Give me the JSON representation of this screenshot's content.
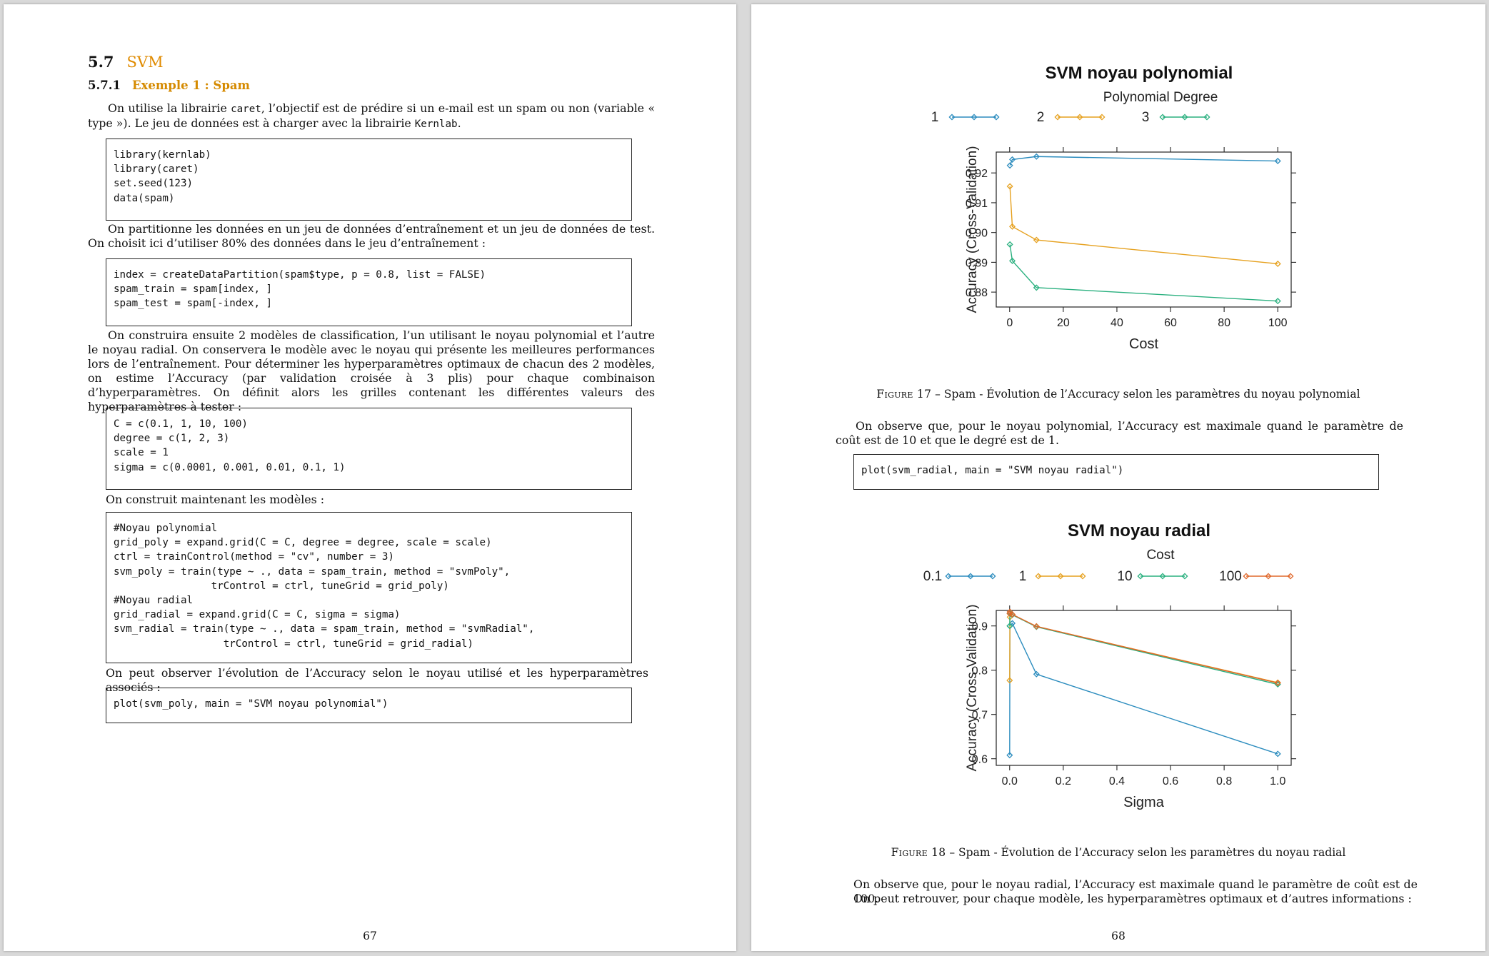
{
  "left_page": {
    "section": {
      "number": "5.7",
      "title": "SVM"
    },
    "subsection": {
      "number": "5.7.1",
      "title": "Exemple 1 : Spam"
    },
    "p1": {
      "a": "On utilise la librairie ",
      "b": "caret",
      "c": ", l’objectif est de prédire si un e-mail est un spam ou non (variable « type »). Le jeu de données est à charger avec la librairie ",
      "d": "Kernlab",
      "e": "."
    },
    "code1": [
      "library(kernlab)",
      "library(caret)",
      "set.seed(123)",
      "data(spam)"
    ],
    "p2": "On partitionne les données en un jeu de données d’entraînement et un jeu de données de test. On choisit ici d’utiliser 80% des données dans le jeu d’entraînement :",
    "code2": [
      "index = createDataPartition(spam$type, p = 0.8, list = FALSE)",
      "spam_train = spam[index, ]",
      "spam_test = spam[-index, ]"
    ],
    "p3": "On construira ensuite 2 modèles de classification, l’un utilisant le noyau polynomial et l’autre le noyau radial. On conservera le modèle avec le noyau qui présente les meilleures performances lors de l’entraînement. Pour déterminer les hyperparamètres optimaux de chacun des 2 modèles, on estime l’Accuracy (par validation croisée à 3 plis) pour chaque combinaison d’hyperparamètres. On définit alors les grilles contenant les différentes valeurs des hyperparamètres à tester :",
    "code3": [
      "C = c(0.1, 1, 10, 100)",
      "degree = c(1, 2, 3)",
      "scale = 1",
      "sigma = c(0.0001, 0.001, 0.01, 0.1, 1)"
    ],
    "p4": "On construit maintenant les modèles :",
    "code4": [
      "#Noyau polynomial",
      "grid_poly = expand.grid(C = C, degree = degree, scale = scale)",
      "ctrl = trainControl(method = \"cv\", number = 3)",
      "svm_poly = train(type ~ ., data = spam_train, method = \"svmPoly\",",
      "                trControl = ctrl, tuneGrid = grid_poly)",
      "#Noyau radial",
      "grid_radial = expand.grid(C = C, sigma = sigma)",
      "svm_radial = train(type ~ ., data = spam_train, method = \"svmRadial\",",
      "                  trControl = ctrl, tuneGrid = grid_radial)"
    ],
    "p5": "On peut observer l’évolution de l’Accuracy selon le noyau utilisé et les hyperparamètres associés :",
    "code5": [
      "plot(svm_poly, main = \"SVM noyau polynomial\")"
    ],
    "page_number": "67"
  },
  "right_page": {
    "figure17_caption": {
      "label": "Figure 17",
      "text": " – Spam - Évolution de l’Accuracy selon les paramètres du noyau polynomial"
    },
    "p6": "On observe que, pour le noyau polynomial, l’Accuracy est maximale quand le paramètre de coût est de 10 et que le degré est de 1.",
    "code6": [
      "plot(svm_radial, main = \"SVM noyau radial\")"
    ],
    "figure18_caption": {
      "label": "Figure 18",
      "text": " – Spam - Évolution de l’Accuracy selon les paramètres du noyau radial"
    },
    "p7": "On observe que, pour le noyau radial, l’Accuracy est maximale quand le paramètre de coût est de 100.",
    "p8": "On peut retrouver, pour chaque modèle, les hyperparamètres optimaux et d’autres informations :",
    "page_number": "68"
  },
  "chart_data": [
    {
      "type": "line",
      "title": "SVM noyau polynomial",
      "legend_title": "Polynomial Degree",
      "legend_position": "top",
      "xlabel": "Cost",
      "ylabel": "Accuracy (Cross-Validation)",
      "xlim": [
        -5,
        105
      ],
      "ylim": [
        0.875,
        0.927
      ],
      "xticks": [
        0,
        20,
        40,
        60,
        80,
        100
      ],
      "yticks": [
        0.88,
        0.89,
        0.9,
        0.91,
        0.92
      ],
      "ytick_labels": [
        "0.88",
        "0.89",
        "0.90",
        "0.91",
        "0.92"
      ],
      "grid": false,
      "x": [
        0.1,
        1,
        10,
        100
      ],
      "series": [
        {
          "name": "1",
          "color": "#2b8cbe",
          "values": [
            0.9225,
            0.9245,
            0.9255,
            0.924
          ]
        },
        {
          "name": "2",
          "color": "#e6a11f",
          "values": [
            0.9155,
            0.902,
            0.8975,
            0.8895
          ]
        },
        {
          "name": "3",
          "color": "#2ab07f",
          "values": [
            0.896,
            0.8905,
            0.8815,
            0.877
          ]
        }
      ]
    },
    {
      "type": "line",
      "title": "SVM noyau radial",
      "legend_title": "Cost",
      "legend_position": "top",
      "xlabel": "Sigma",
      "ylabel": "Accuracy (Cross-Validation)",
      "xlim": [
        -0.05,
        1.05
      ],
      "ylim": [
        0.585,
        0.935
      ],
      "xticks": [
        0.0,
        0.2,
        0.4,
        0.6,
        0.8,
        1.0
      ],
      "xtick_labels": [
        "0.0",
        "0.2",
        "0.4",
        "0.6",
        "0.8",
        "1.0"
      ],
      "yticks": [
        0.6,
        0.7,
        0.8,
        0.9
      ],
      "ytick_labels": [
        "0.6",
        "0.7",
        "0.8",
        "0.9"
      ],
      "grid": false,
      "x": [
        0.0001,
        0.001,
        0.01,
        0.1,
        1
      ],
      "series": [
        {
          "name": "0.1",
          "color": "#2b8cbe",
          "values": [
            0.608,
            0.9,
            0.906,
            0.791,
            0.611
          ]
        },
        {
          "name": "1",
          "color": "#e6a11f",
          "values": [
            0.777,
            0.92,
            0.926,
            0.899,
            0.772
          ]
        },
        {
          "name": "10",
          "color": "#2ab07f",
          "values": [
            0.9,
            0.929,
            0.925,
            0.898,
            0.768
          ]
        },
        {
          "name": "100",
          "color": "#e0682b",
          "values": [
            0.928,
            0.932,
            0.926,
            0.899,
            0.771
          ]
        }
      ]
    }
  ]
}
